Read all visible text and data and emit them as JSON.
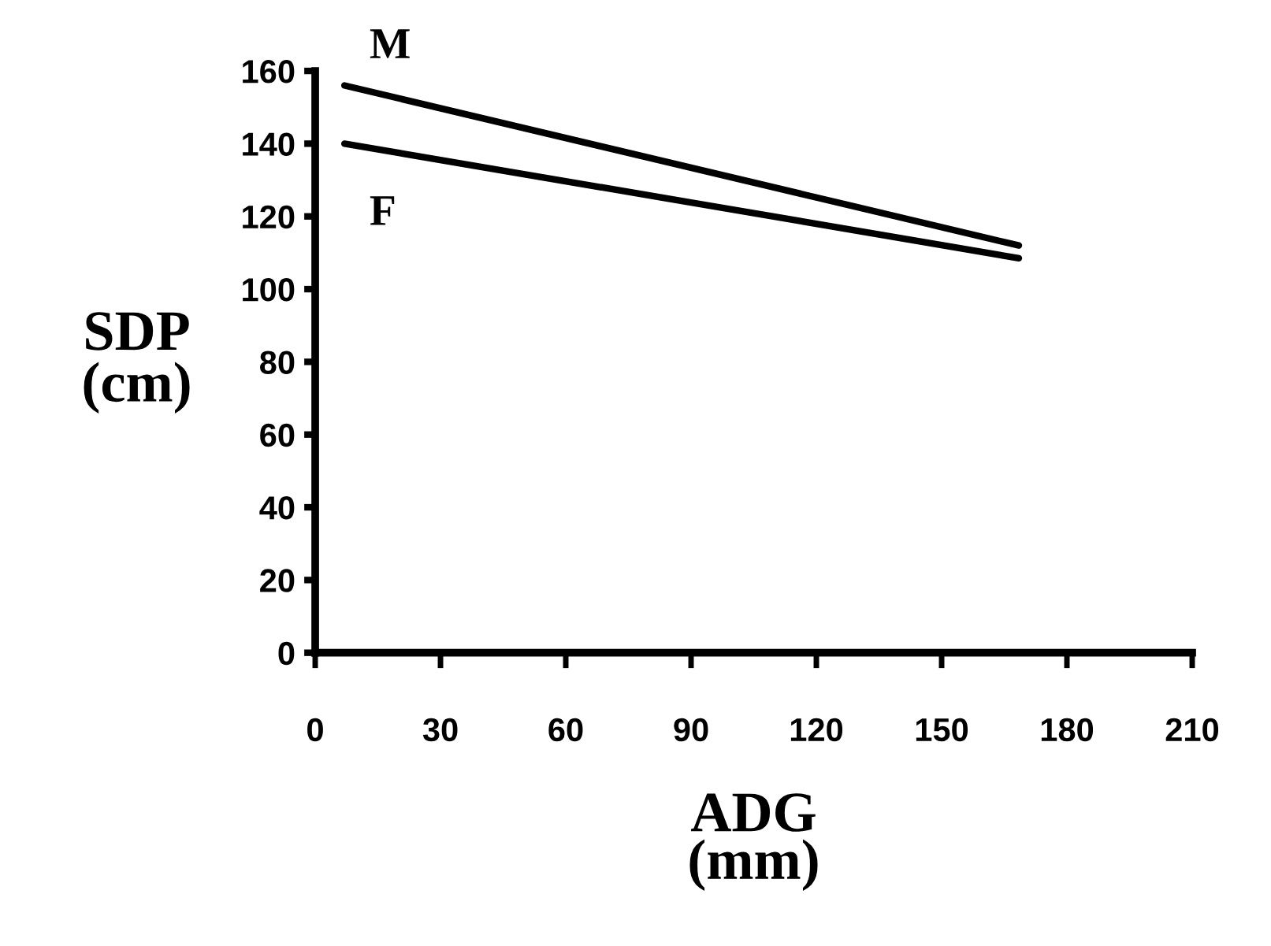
{
  "chart_data": {
    "type": "line",
    "xlabel": "ADG\n(mm)",
    "ylabel": "SDP\n(cm)",
    "x": [
      7,
      168.5
    ],
    "series": [
      {
        "name": "M",
        "color": "#000000",
        "values": [
          156,
          112
        ]
      },
      {
        "name": "F",
        "color": "#000000",
        "values": [
          140,
          108.5
        ]
      }
    ],
    "xlim": [
      0,
      210
    ],
    "xticks": [
      0,
      30,
      60,
      90,
      120,
      150,
      180,
      210
    ],
    "ylim": [
      0,
      160
    ],
    "yticks": [
      0,
      20,
      40,
      60,
      80,
      100,
      120,
      140,
      160
    ],
    "grid": false,
    "legend": false,
    "marker": "none",
    "line_style": "solid"
  }
}
